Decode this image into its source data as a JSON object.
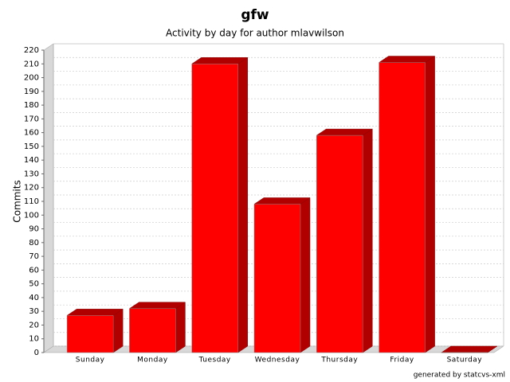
{
  "chart_data": {
    "type": "bar3d",
    "title": "gfw",
    "subtitle": "Activity by day for author mlavwilson",
    "y_label": "Commits",
    "footer": "generated by statcvs-xml",
    "categories": [
      "Sunday",
      "Monday",
      "Tuesday",
      "Wednesday",
      "Thursday",
      "Friday",
      "Saturday"
    ],
    "values": [
      27,
      32,
      210,
      108,
      158,
      211,
      0
    ],
    "color": "#ff0000",
    "ylim": [
      0,
      220
    ],
    "yticks": [
      0,
      10,
      20,
      30,
      40,
      50,
      60,
      70,
      80,
      90,
      100,
      110,
      120,
      130,
      140,
      150,
      160,
      170,
      180,
      190,
      200,
      210,
      220
    ],
    "grid": true
  }
}
